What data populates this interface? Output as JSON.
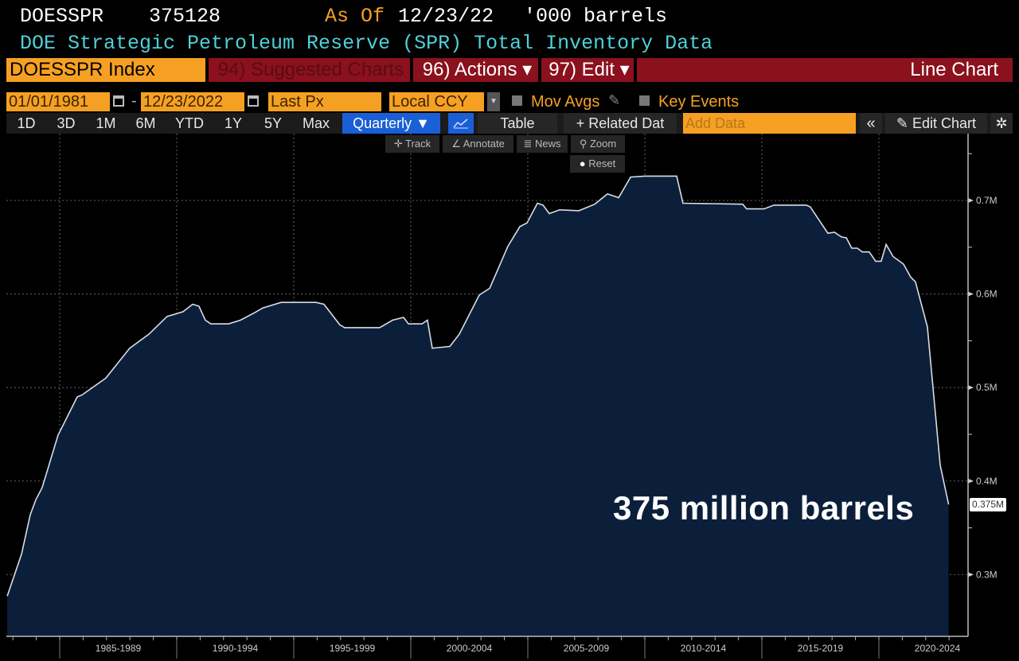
{
  "header": {
    "ticker": "DOESSPR",
    "last_value": "375128",
    "as_of_label": "As Of",
    "as_of_date": "12/23/22",
    "units": "'000 barrels",
    "description": "DOE Strategic Petroleum Reserve (SPR) Total Inventory Data"
  },
  "menu": {
    "security": "DOESSPR Index",
    "suggested": "94) Suggested Charts",
    "actions": "96) Actions ▾",
    "edit": "97) Edit ▾",
    "chart_type": "Line Chart"
  },
  "controls": {
    "start_date": "01/01/1981",
    "dash": "-",
    "end_date": "12/23/2022",
    "field": "Last Px",
    "currency": "Local CCY",
    "mov_avgs": "Mov Avgs",
    "key_events": "Key Events"
  },
  "toolbar": {
    "ranges": [
      "1D",
      "3D",
      "1M",
      "6M",
      "YTD",
      "1Y",
      "5Y",
      "Max"
    ],
    "periodicity": "Quarterly ▼",
    "table": "Table",
    "related": "+ Related Dat",
    "add_data_placeholder": "Add Data",
    "collapse": "«",
    "edit_chart": "Edit Chart"
  },
  "chart_tools": {
    "track": "Track",
    "annotate": "Annotate",
    "news": "News",
    "zoom": "Zoom",
    "reset": "Reset"
  },
  "colors": {
    "accent": "#f6a023",
    "menu_red": "#8a111d",
    "fill": "#0b1f3a",
    "line": "#d8dde4",
    "active_blue": "#1b5fd6",
    "subtitle": "#4fd0d8"
  },
  "chart_data": {
    "type": "area",
    "title": "DOE Strategic Petroleum Reserve (SPR) Total Inventory Data",
    "ylabel": "'000 barrels",
    "annotation": "375 million barrels",
    "last_label": "0.375M",
    "ylim": [
      0.235,
      0.77
    ],
    "xlim": [
      1982.7,
      2023.9
    ],
    "grid": true,
    "y_ticks": [
      {
        "v": 0.3,
        "label": "0.3M"
      },
      {
        "v": 0.4,
        "label": "0.4M"
      },
      {
        "v": 0.5,
        "label": "0.5M"
      },
      {
        "v": 0.6,
        "label": "0.6M"
      },
      {
        "v": 0.7,
        "label": "0.7M"
      }
    ],
    "x_ticks": [
      {
        "start": 1985,
        "label": "1985-1989"
      },
      {
        "start": 1990,
        "label": "1990-1994"
      },
      {
        "start": 1995,
        "label": "1995-1999"
      },
      {
        "start": 2000,
        "label": "2000-2004"
      },
      {
        "start": 2005,
        "label": "2005-2009"
      },
      {
        "start": 2010,
        "label": "2010-2014"
      },
      {
        "start": 2015,
        "label": "2015-2019"
      },
      {
        "start": 2020,
        "label": "2020-2024"
      }
    ],
    "x": [
      1982.76,
      1983.37,
      1983.74,
      1983.98,
      1984.25,
      1984.93,
      1985.75,
      1985.95,
      1986.97,
      1987.99,
      1988.81,
      1989.59,
      1990.27,
      1990.68,
      1990.95,
      1991.22,
      1991.46,
      1992.21,
      1992.72,
      1993.33,
      1993.67,
      1994.46,
      1995.95,
      1996.29,
      1996.97,
      1997.18,
      1998.67,
      1999.22,
      1999.69,
      1999.9,
      2000.48,
      2000.71,
      2000.92,
      2001.67,
      2002.07,
      2002.93,
      2003.37,
      2004.15,
      2004.66,
      2004.97,
      2005.41,
      2005.65,
      2005.92,
      2006.36,
      2007.18,
      2007.86,
      2008.4,
      2008.88,
      2009.39,
      2010.0,
      2011.36,
      2011.63,
      2014.18,
      2014.35,
      2015.1,
      2015.51,
      2016.9,
      2017.07,
      2017.82,
      2018.1,
      2018.4,
      2018.61,
      2018.84,
      2019.08,
      2019.29,
      2019.59,
      2019.86,
      2020.1,
      2020.31,
      2020.61,
      2021.05,
      2021.36,
      2021.56,
      2022.07,
      2022.62,
      2022.98
    ],
    "y": [
      0.277,
      0.322,
      0.364,
      0.38,
      0.393,
      0.449,
      0.49,
      0.492,
      0.51,
      0.542,
      0.557,
      0.576,
      0.581,
      0.589,
      0.587,
      0.572,
      0.568,
      0.568,
      0.572,
      0.58,
      0.585,
      0.591,
      0.591,
      0.589,
      0.567,
      0.564,
      0.564,
      0.572,
      0.575,
      0.568,
      0.568,
      0.572,
      0.542,
      0.544,
      0.557,
      0.599,
      0.606,
      0.651,
      0.672,
      0.676,
      0.697,
      0.695,
      0.686,
      0.69,
      0.689,
      0.696,
      0.707,
      0.703,
      0.725,
      0.726,
      0.726,
      0.697,
      0.696,
      0.691,
      0.691,
      0.695,
      0.695,
      0.693,
      0.665,
      0.666,
      0.661,
      0.66,
      0.649,
      0.649,
      0.645,
      0.645,
      0.635,
      0.635,
      0.653,
      0.64,
      0.632,
      0.618,
      0.613,
      0.565,
      0.417,
      0.375
    ]
  }
}
